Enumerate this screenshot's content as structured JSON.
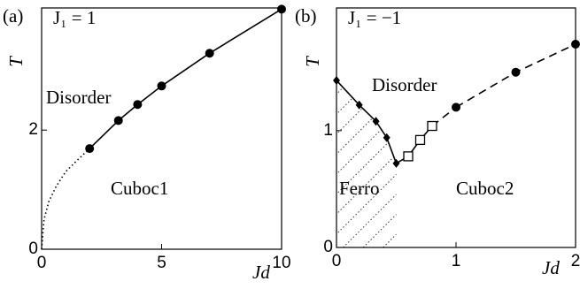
{
  "chart_data": [
    {
      "type": "line",
      "panel_label": "(a)",
      "annotations": [
        "J₁ = 1",
        "Disorder",
        "Cuboc1"
      ],
      "x_label": "Jd",
      "y_label": "T",
      "xlim": [
        0,
        10
      ],
      "ylim": [
        0,
        4.05
      ],
      "xticks": [
        0,
        5,
        10
      ],
      "yticks": [
        0,
        2
      ],
      "series": [
        {
          "x": [
            0,
            0.1,
            0.3,
            0.6,
            1,
            1.5,
            2
          ],
          "values": [
            0,
            0.5,
            0.8,
            1.05,
            1.3,
            1.5,
            1.69
          ],
          "color": "#000000",
          "marker": "none",
          "linestyle": "dotted"
        },
        {
          "x": [
            2,
            3.2,
            4,
            5,
            7,
            10
          ],
          "values": [
            1.69,
            2.16,
            2.43,
            2.74,
            3.29,
            4.03
          ],
          "color": "#000000",
          "marker": "circle",
          "linestyle": "solid"
        }
      ]
    },
    {
      "type": "line",
      "panel_label": "(b)",
      "annotations": [
        "J₁ = −1",
        "Disorder",
        "Ferro",
        "Cuboc2"
      ],
      "x_label": "Jd",
      "y_label": "T",
      "xlim": [
        0,
        2
      ],
      "ylim": [
        0,
        2.05
      ],
      "xticks": [
        0,
        1,
        2
      ],
      "yticks": [
        0,
        1
      ],
      "series": [
        {
          "x": [
            0,
            0.19,
            0.33,
            0.42,
            0.5
          ],
          "values": [
            1.43,
            1.22,
            1.08,
            0.94,
            0.72
          ],
          "color": "#000000",
          "marker": "diamond",
          "linestyle": "solid",
          "hatch": true
        },
        {
          "x": [
            0.6,
            0.7,
            0.8
          ],
          "values": [
            0.78,
            0.92,
            1.04
          ],
          "color": "#000000",
          "marker": "square",
          "linestyle": "solid"
        },
        {
          "x": [
            1,
            1.5,
            2
          ],
          "values": [
            1.2,
            1.5,
            1.74
          ],
          "color": "#000000",
          "marker": "circle",
          "linestyle": "dashed"
        }
      ]
    }
  ]
}
